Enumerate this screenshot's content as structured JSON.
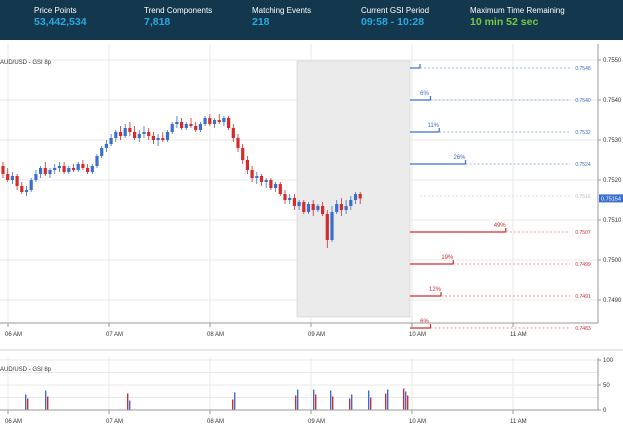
{
  "header": {
    "stats": [
      {
        "label": "Price Points",
        "value": "53,442,534",
        "color": "#27a9e1"
      },
      {
        "label": "Trend Components",
        "value": "7,818",
        "color": "#27a9e1"
      },
      {
        "label": "Matching Events",
        "value": "218",
        "color": "#27a9e1"
      },
      {
        "label": "Current GSI Period",
        "value": "09:58 - 10:28",
        "color": "#27a9e1"
      },
      {
        "label": "Maximum Time Remaining",
        "value": "10 min 52 sec",
        "color": "#7ac943"
      }
    ]
  },
  "colors": {
    "up": "#3a6fcf",
    "down": "#d62b2b",
    "header_bg": "#13374d",
    "current_price_bg": "#3a6fcf",
    "shaded_period": "#ebebeb"
  },
  "main_chart": {
    "title": "AUD/USD - GSI 8p",
    "current_price": "0.75154",
    "x_labels": [
      "06 AM",
      "07 AM",
      "08 AM",
      "09 AM",
      "10 AM",
      "11 AM"
    ],
    "y_labels": [
      "0.7550",
      "0.7540",
      "0.7530",
      "0.7520",
      "0.7510",
      "0.7500",
      "0.7490"
    ],
    "projections": [
      {
        "pct": "",
        "level": "0.7548",
        "direction": "up"
      },
      {
        "pct": "6%",
        "level": "0.7540",
        "direction": "up"
      },
      {
        "pct": "11%",
        "level": "0.7532",
        "direction": "up"
      },
      {
        "pct": "26%",
        "level": "0.7524",
        "direction": "up"
      },
      {
        "pct": "",
        "level": "0.7516",
        "direction": "neutral"
      },
      {
        "pct": "49%",
        "level": "0.7507",
        "direction": "down"
      },
      {
        "pct": "19%",
        "level": "0.7499",
        "direction": "down"
      },
      {
        "pct": "12%",
        "level": "0.7491",
        "direction": "down"
      },
      {
        "pct": "6%",
        "level": "0.7483",
        "direction": "down"
      }
    ]
  },
  "sub_chart": {
    "title": "AUD/USD - GSI 8p",
    "x_labels": [
      "06 AM",
      "07 AM",
      "08 AM",
      "09 AM",
      "10 AM",
      "11 AM"
    ],
    "y_labels": [
      "100",
      "50",
      "0"
    ]
  }
}
